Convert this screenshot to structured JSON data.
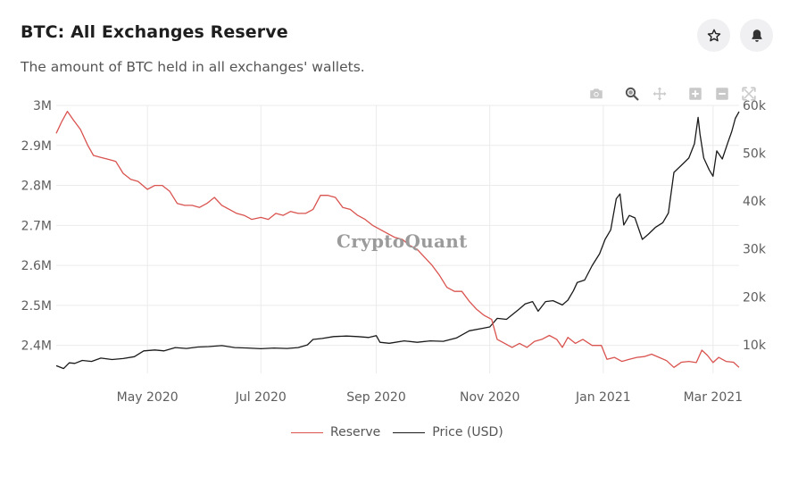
{
  "header": {
    "title": "BTC: All Exchanges Reserve",
    "subtitle": "The amount of BTC held in all exchanges' wallets."
  },
  "icons": {
    "star": "star-icon",
    "bell": "bell-icon",
    "modebar": [
      "camera-icon",
      "zoom-icon",
      "pan-icon",
      "zoom-in-icon",
      "zoom-out-icon",
      "autoscale-icon"
    ]
  },
  "watermark": "CryptoQuant",
  "colors": {
    "reserve": "#d9534f",
    "price": "#1a1a1a",
    "grid": "#ebebeb",
    "axis_text": "#5e5e5e"
  },
  "chart_data": {
    "type": "line",
    "title": "BTC: All Exchanges Reserve",
    "subtitle": "The amount of BTC held in all exchanges' wallets.",
    "x_range": [
      "2020-03-13",
      "2021-03-15"
    ],
    "x_ticks": [
      {
        "date": "2020-05-01",
        "label": "May 2020"
      },
      {
        "date": "2020-07-01",
        "label": "Jul 2020"
      },
      {
        "date": "2020-09-01",
        "label": "Sep 2020"
      },
      {
        "date": "2020-11-01",
        "label": "Nov 2020"
      },
      {
        "date": "2021-01-01",
        "label": "Jan 2021"
      },
      {
        "date": "2021-03-01",
        "label": "Mar 2021"
      }
    ],
    "y_left": {
      "range": [
        2330000,
        3000000
      ],
      "ticks": [
        {
          "value": 2400000,
          "label": "2.4M"
        },
        {
          "value": 2500000,
          "label": "2.5M"
        },
        {
          "value": 2600000,
          "label": "2.6M"
        },
        {
          "value": 2700000,
          "label": "2.7M"
        },
        {
          "value": 2800000,
          "label": "2.8M"
        },
        {
          "value": 2900000,
          "label": "2.9M"
        },
        {
          "value": 3000000,
          "label": "3M"
        }
      ]
    },
    "y_right": {
      "range": [
        4000,
        60000
      ],
      "ticks": [
        {
          "value": 10000,
          "label": "10k"
        },
        {
          "value": 20000,
          "label": "20k"
        },
        {
          "value": 30000,
          "label": "30k"
        },
        {
          "value": 40000,
          "label": "40k"
        },
        {
          "value": 50000,
          "label": "50k"
        },
        {
          "value": 60000,
          "label": "60k"
        }
      ]
    },
    "grid": true,
    "legend_position": "bottom",
    "series": [
      {
        "name": "Reserve",
        "axis": "left",
        "color": "#d9534f",
        "points": [
          [
            "2020-03-13",
            2930000
          ],
          [
            "2020-03-16",
            2960000
          ],
          [
            "2020-03-19",
            2985000
          ],
          [
            "2020-03-22",
            2965000
          ],
          [
            "2020-03-26",
            2940000
          ],
          [
            "2020-03-30",
            2900000
          ],
          [
            "2020-04-02",
            2875000
          ],
          [
            "2020-04-06",
            2870000
          ],
          [
            "2020-04-10",
            2865000
          ],
          [
            "2020-04-14",
            2860000
          ],
          [
            "2020-04-18",
            2830000
          ],
          [
            "2020-04-22",
            2815000
          ],
          [
            "2020-04-26",
            2810000
          ],
          [
            "2020-05-01",
            2790000
          ],
          [
            "2020-05-05",
            2800000
          ],
          [
            "2020-05-09",
            2800000
          ],
          [
            "2020-05-13",
            2785000
          ],
          [
            "2020-05-17",
            2755000
          ],
          [
            "2020-05-21",
            2750000
          ],
          [
            "2020-05-25",
            2750000
          ],
          [
            "2020-05-29",
            2745000
          ],
          [
            "2020-06-02",
            2755000
          ],
          [
            "2020-06-06",
            2770000
          ],
          [
            "2020-06-10",
            2750000
          ],
          [
            "2020-06-14",
            2740000
          ],
          [
            "2020-06-18",
            2730000
          ],
          [
            "2020-06-22",
            2725000
          ],
          [
            "2020-06-26",
            2715000
          ],
          [
            "2020-07-01",
            2720000
          ],
          [
            "2020-07-05",
            2715000
          ],
          [
            "2020-07-09",
            2730000
          ],
          [
            "2020-07-13",
            2725000
          ],
          [
            "2020-07-17",
            2735000
          ],
          [
            "2020-07-21",
            2730000
          ],
          [
            "2020-07-25",
            2730000
          ],
          [
            "2020-07-29",
            2740000
          ],
          [
            "2020-08-02",
            2775000
          ],
          [
            "2020-08-06",
            2775000
          ],
          [
            "2020-08-10",
            2770000
          ],
          [
            "2020-08-14",
            2745000
          ],
          [
            "2020-08-18",
            2740000
          ],
          [
            "2020-08-22",
            2725000
          ],
          [
            "2020-08-26",
            2715000
          ],
          [
            "2020-08-30",
            2700000
          ],
          [
            "2020-09-03",
            2690000
          ],
          [
            "2020-09-07",
            2680000
          ],
          [
            "2020-09-11",
            2670000
          ],
          [
            "2020-09-15",
            2665000
          ],
          [
            "2020-09-19",
            2650000
          ],
          [
            "2020-09-23",
            2640000
          ],
          [
            "2020-09-27",
            2620000
          ],
          [
            "2020-10-01",
            2600000
          ],
          [
            "2020-10-05",
            2575000
          ],
          [
            "2020-10-09",
            2545000
          ],
          [
            "2020-10-13",
            2535000
          ],
          [
            "2020-10-17",
            2535000
          ],
          [
            "2020-10-21",
            2510000
          ],
          [
            "2020-10-25",
            2490000
          ],
          [
            "2020-10-29",
            2475000
          ],
          [
            "2020-11-02",
            2465000
          ],
          [
            "2020-11-05",
            2415000
          ],
          [
            "2020-11-09",
            2405000
          ],
          [
            "2020-11-13",
            2395000
          ],
          [
            "2020-11-17",
            2405000
          ],
          [
            "2020-11-21",
            2395000
          ],
          [
            "2020-11-25",
            2410000
          ],
          [
            "2020-11-29",
            2415000
          ],
          [
            "2020-12-03",
            2425000
          ],
          [
            "2020-12-07",
            2415000
          ],
          [
            "2020-12-10",
            2395000
          ],
          [
            "2020-12-13",
            2420000
          ],
          [
            "2020-12-17",
            2405000
          ],
          [
            "2020-12-21",
            2415000
          ],
          [
            "2020-12-26",
            2400000
          ],
          [
            "2020-12-31",
            2400000
          ],
          [
            "2021-01-03",
            2365000
          ],
          [
            "2021-01-07",
            2370000
          ],
          [
            "2021-01-11",
            2360000
          ],
          [
            "2021-01-15",
            2365000
          ],
          [
            "2021-01-19",
            2370000
          ],
          [
            "2021-01-23",
            2372000
          ],
          [
            "2021-01-27",
            2378000
          ],
          [
            "2021-01-31",
            2370000
          ],
          [
            "2021-02-04",
            2362000
          ],
          [
            "2021-02-08",
            2345000
          ],
          [
            "2021-02-12",
            2358000
          ],
          [
            "2021-02-16",
            2360000
          ],
          [
            "2021-02-20",
            2357000
          ],
          [
            "2021-02-23",
            2388000
          ],
          [
            "2021-02-26",
            2375000
          ],
          [
            "2021-03-01",
            2357000
          ],
          [
            "2021-03-04",
            2370000
          ],
          [
            "2021-03-08",
            2360000
          ],
          [
            "2021-03-12",
            2358000
          ],
          [
            "2021-03-15",
            2345000
          ]
        ]
      },
      {
        "name": "Price (USD)",
        "axis": "right",
        "color": "#1a1a1a",
        "points": [
          [
            "2020-03-13",
            5600
          ],
          [
            "2020-03-15",
            5300
          ],
          [
            "2020-03-17",
            5000
          ],
          [
            "2020-03-20",
            6200
          ],
          [
            "2020-03-23",
            6100
          ],
          [
            "2020-03-27",
            6700
          ],
          [
            "2020-04-01",
            6500
          ],
          [
            "2020-04-06",
            7200
          ],
          [
            "2020-04-12",
            6900
          ],
          [
            "2020-04-18",
            7100
          ],
          [
            "2020-04-24",
            7500
          ],
          [
            "2020-04-29",
            8700
          ],
          [
            "2020-05-05",
            8900
          ],
          [
            "2020-05-10",
            8700
          ],
          [
            "2020-05-16",
            9400
          ],
          [
            "2020-05-22",
            9200
          ],
          [
            "2020-05-28",
            9500
          ],
          [
            "2020-06-03",
            9600
          ],
          [
            "2020-06-10",
            9800
          ],
          [
            "2020-06-17",
            9400
          ],
          [
            "2020-06-24",
            9300
          ],
          [
            "2020-07-01",
            9150
          ],
          [
            "2020-07-08",
            9300
          ],
          [
            "2020-07-15",
            9200
          ],
          [
            "2020-07-21",
            9400
          ],
          [
            "2020-07-26",
            9950
          ],
          [
            "2020-07-29",
            11100
          ],
          [
            "2020-08-03",
            11300
          ],
          [
            "2020-08-09",
            11700
          ],
          [
            "2020-08-16",
            11800
          ],
          [
            "2020-08-22",
            11700
          ],
          [
            "2020-08-28",
            11500
          ],
          [
            "2020-09-01",
            11900
          ],
          [
            "2020-09-03",
            10500
          ],
          [
            "2020-09-08",
            10300
          ],
          [
            "2020-09-16",
            10800
          ],
          [
            "2020-09-23",
            10500
          ],
          [
            "2020-09-30",
            10800
          ],
          [
            "2020-10-07",
            10700
          ],
          [
            "2020-10-14",
            11400
          ],
          [
            "2020-10-21",
            12900
          ],
          [
            "2020-10-28",
            13400
          ],
          [
            "2020-11-01",
            13700
          ],
          [
            "2020-11-05",
            15500
          ],
          [
            "2020-11-10",
            15300
          ],
          [
            "2020-11-17",
            17500
          ],
          [
            "2020-11-20",
            18500
          ],
          [
            "2020-11-24",
            19000
          ],
          [
            "2020-11-27",
            17000
          ],
          [
            "2020-12-01",
            19000
          ],
          [
            "2020-12-05",
            19200
          ],
          [
            "2020-12-10",
            18300
          ],
          [
            "2020-12-13",
            19300
          ],
          [
            "2020-12-16",
            21300
          ],
          [
            "2020-12-18",
            23000
          ],
          [
            "2020-12-22",
            23500
          ],
          [
            "2020-12-26",
            26500
          ],
          [
            "2020-12-30",
            29000
          ],
          [
            "2021-01-02",
            32000
          ],
          [
            "2021-01-05",
            34000
          ],
          [
            "2021-01-08",
            40500
          ],
          [
            "2021-01-10",
            41500
          ],
          [
            "2021-01-12",
            35000
          ],
          [
            "2021-01-15",
            37000
          ],
          [
            "2021-01-18",
            36500
          ],
          [
            "2021-01-22",
            32000
          ],
          [
            "2021-01-25",
            33000
          ],
          [
            "2021-01-29",
            34500
          ],
          [
            "2021-02-02",
            35500
          ],
          [
            "2021-02-05",
            37500
          ],
          [
            "2021-02-08",
            46000
          ],
          [
            "2021-02-12",
            47500
          ],
          [
            "2021-02-16",
            49000
          ],
          [
            "2021-02-19",
            52000
          ],
          [
            "2021-02-21",
            57500
          ],
          [
            "2021-02-22",
            54000
          ],
          [
            "2021-02-24",
            49000
          ],
          [
            "2021-02-27",
            46500
          ],
          [
            "2021-03-01",
            45200
          ],
          [
            "2021-03-03",
            50500
          ],
          [
            "2021-03-06",
            48800
          ],
          [
            "2021-03-09",
            52300
          ],
          [
            "2021-03-11",
            54500
          ],
          [
            "2021-03-13",
            57300
          ],
          [
            "2021-03-15",
            58700
          ]
        ]
      }
    ]
  }
}
